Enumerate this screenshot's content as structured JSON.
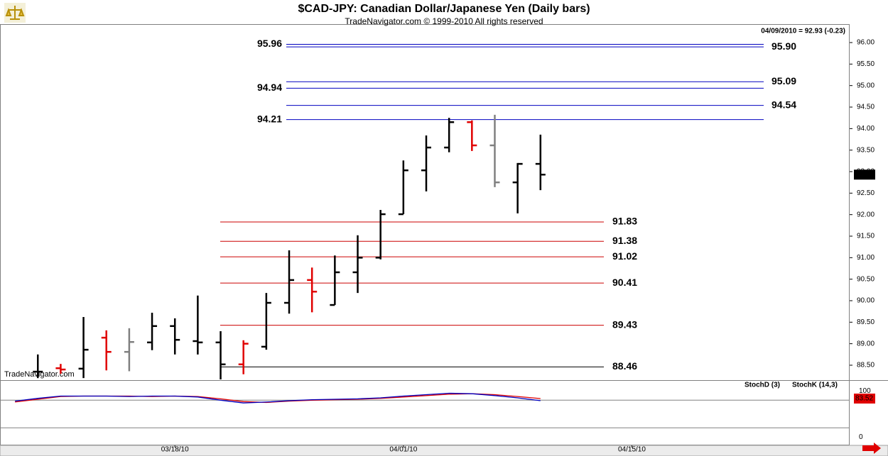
{
  "chart_data": [
    {
      "type": "ohlc",
      "title": "$CAD-JPY:  Canadian Dollar/Japanese Yen  (Daily bars)",
      "subtitle": "TradeNavigator.com © 1999-2010 All rights reserved",
      "header": "04/09/2010 = 92.93 (-0.23)",
      "watermark": "TradeNavigator.com",
      "categories": [
        null,
        null,
        null,
        null,
        null,
        null,
        null,
        "03/18/10",
        null,
        null,
        null,
        null,
        null,
        null,
        null,
        null,
        null,
        "04/01/10",
        null,
        null,
        null,
        null,
        null,
        null,
        null,
        null,
        null,
        "04/15/10",
        null,
        null,
        null,
        null,
        null,
        null,
        null,
        null,
        null
      ],
      "open": [
        null,
        88.35,
        88.43,
        88.42,
        89.14,
        88.81,
        89.03,
        89.41,
        89.06,
        89.03,
        88.52,
        88.93,
        89.95,
        90.48,
        89.9,
        90.66,
        91.0,
        92.01,
        93.03,
        93.56,
        94.15,
        93.61,
        92.75,
        93.18,
        null,
        null,
        null,
        null,
        null,
        null,
        null,
        null,
        null,
        null,
        null,
        null,
        null
      ],
      "high": [
        null,
        88.75,
        88.53,
        89.62,
        89.31,
        89.36,
        89.72,
        89.59,
        90.12,
        89.29,
        89.08,
        90.18,
        91.17,
        90.77,
        91.05,
        91.52,
        92.11,
        93.26,
        93.84,
        94.25,
        94.19,
        94.32,
        93.2,
        93.86,
        null,
        null,
        null,
        null,
        null,
        null,
        null,
        null,
        null,
        null,
        null,
        null,
        null
      ],
      "low": [
        null,
        88.2,
        88.3,
        88.2,
        88.38,
        88.36,
        88.85,
        88.75,
        88.75,
        88.17,
        88.29,
        88.86,
        89.7,
        89.73,
        89.9,
        90.18,
        90.96,
        92.01,
        92.54,
        93.45,
        93.48,
        92.64,
        92.03,
        92.57,
        null,
        null,
        null,
        null,
        null,
        null,
        null,
        null,
        null,
        null,
        null,
        null,
        null
      ],
      "close": [
        null,
        88.35,
        88.4,
        88.86,
        88.81,
        89.04,
        89.41,
        89.09,
        89.03,
        88.52,
        89.0,
        89.95,
        90.48,
        90.21,
        90.66,
        91.0,
        92.01,
        93.03,
        93.56,
        94.15,
        93.61,
        92.75,
        93.18,
        92.93,
        null,
        null,
        null,
        null,
        null,
        null,
        null,
        null,
        null,
        null,
        null,
        null,
        null
      ],
      "bar_colors": [
        null,
        "#000000",
        "#e00000",
        "#000000",
        "#e00000",
        "#808080",
        "#000000",
        "#000000",
        "#000000",
        "#000000",
        "#e00000",
        "#000000",
        "#000000",
        "#e00000",
        "#000000",
        "#000000",
        "#000000",
        "#000000",
        "#000000",
        "#000000",
        "#e00000",
        "#808080",
        "#000000",
        "#000000",
        null,
        null,
        null,
        null,
        null,
        null,
        null,
        null,
        null,
        null,
        null,
        null,
        null
      ],
      "ylim": [
        88.17,
        96.33
      ],
      "yticks": [
        {
          "value": 88.5,
          "label": "88.50"
        },
        {
          "value": 89,
          "label": "89.00"
        },
        {
          "value": 89.5,
          "label": "89.50"
        },
        {
          "value": 90,
          "label": "90.00"
        },
        {
          "value": 90.5,
          "label": "90.50"
        },
        {
          "value": 91,
          "label": "91.00"
        },
        {
          "value": 91.5,
          "label": "91.50"
        },
        {
          "value": 92,
          "label": "92.00"
        },
        {
          "value": 92.5,
          "label": "92.50"
        },
        {
          "value": 93,
          "label": "93.00"
        },
        {
          "value": 93.5,
          "label": "93.50"
        },
        {
          "value": 94,
          "label": "94.00"
        },
        {
          "value": 94.5,
          "label": "94.50"
        },
        {
          "value": 95,
          "label": "95.00"
        },
        {
          "value": 95.5,
          "label": "95.50"
        },
        {
          "value": 96,
          "label": "96.00"
        }
      ],
      "upper_levels": [
        {
          "value": 95.96,
          "label": "95.96",
          "color": "#0000c0",
          "label_side": "left"
        },
        {
          "value": 95.9,
          "label": "95.90",
          "color": "#0000c0",
          "label_side": "right"
        },
        {
          "value": 95.09,
          "label": "95.09",
          "color": "#0000c0",
          "label_side": "right"
        },
        {
          "value": 94.94,
          "label": "94.94",
          "color": "#0000c0",
          "label_side": "left"
        },
        {
          "value": 94.54,
          "label": "94.54",
          "color": "#0000c0",
          "label_side": "right"
        },
        {
          "value": 94.21,
          "label": "94.21",
          "color": "#0000c0",
          "label_side": "left"
        }
      ],
      "lower_levels": [
        {
          "value": 91.83,
          "label": "91.83",
          "color": "#cc0000"
        },
        {
          "value": 91.38,
          "label": "91.38",
          "color": "#cc0000"
        },
        {
          "value": 91.02,
          "label": "91.02",
          "color": "#cc0000"
        },
        {
          "value": 90.41,
          "label": "90.41",
          "color": "#cc0000"
        },
        {
          "value": 89.43,
          "label": "89.43",
          "color": "#cc0000"
        },
        {
          "value": 88.46,
          "label": "88.46",
          "color": "#000000"
        }
      ]
    },
    {
      "type": "line",
      "series": [
        {
          "name": "StochD (3)",
          "color": "#e00000",
          "values": [
            76,
            82,
            88,
            89,
            89,
            89,
            88,
            89,
            88,
            83,
            77,
            75,
            78,
            80,
            81,
            82,
            84,
            87,
            90,
            93,
            94,
            92,
            88,
            83.52,
            null,
            null,
            null,
            null,
            null,
            null,
            null,
            null,
            null,
            null,
            null,
            null,
            null
          ]
        },
        {
          "name": "StochK (14,3)",
          "color": "#0000c0",
          "values": [
            78,
            84,
            89,
            89,
            89,
            88,
            89,
            89,
            87,
            80,
            74,
            76,
            79,
            81,
            82,
            83,
            85,
            89,
            92,
            95,
            94,
            90,
            85,
            79,
            null,
            null,
            null,
            null,
            null,
            null,
            null,
            null,
            null,
            null,
            null,
            null,
            null
          ]
        }
      ],
      "ylim": [
        -18,
        122
      ],
      "yticks": [
        0,
        100
      ],
      "hlines": [
        20,
        80
      ]
    }
  ]
}
